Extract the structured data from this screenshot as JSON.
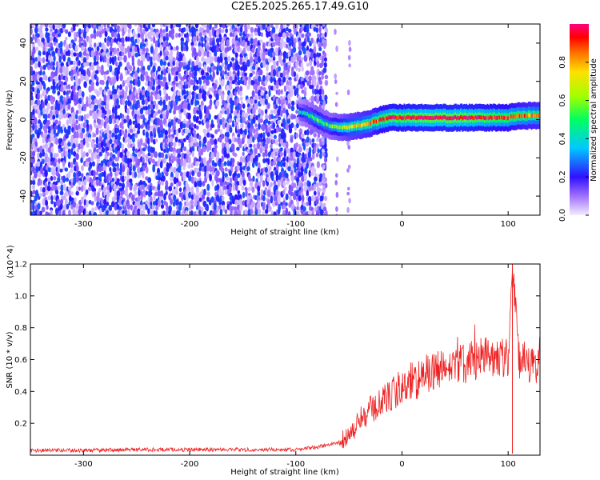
{
  "title": "C2E5.2025.265.17.49.G10",
  "chart_data": [
    {
      "type": "heatmap",
      "xlabel": "Height of straight line (km)",
      "ylabel": "Frequency (Hz)",
      "xlim": [
        -350,
        130
      ],
      "ylim": [
        -50,
        50
      ],
      "x_ticks": [
        -300,
        -200,
        -100,
        0,
        100
      ],
      "x_tick_labels": [
        "-300",
        "-200",
        "-100",
        "0",
        "100"
      ],
      "y_ticks": [
        -40,
        -20,
        0,
        20,
        40
      ],
      "y_tick_labels": [
        "-40",
        "-20",
        "0",
        "20",
        "40"
      ],
      "colorbar": {
        "label": "Normalized spectral amplitude",
        "range": [
          0,
          1
        ],
        "ticks": [
          0,
          0.2,
          0.4,
          0.6,
          0.8
        ],
        "tick_labels": [
          "0.0",
          "0.2",
          "0.4",
          "0.6",
          "0.8"
        ]
      },
      "signal_track": {
        "x": [
          -97,
          -90,
          -80,
          -70,
          -60,
          -50,
          -40,
          -30,
          -20,
          -10,
          0,
          20,
          40,
          60,
          80,
          100,
          110,
          130
        ],
        "freq": [
          4,
          3,
          0,
          -3,
          -4,
          -4,
          -3,
          -2,
          0,
          1,
          1,
          1,
          1,
          1,
          1,
          1,
          2,
          2
        ],
        "peak_amplitude": [
          0.35,
          0.45,
          0.55,
          0.5,
          0.6,
          0.7,
          0.75,
          0.8,
          0.9,
          0.95,
          0.95,
          1.0,
          1.0,
          1.0,
          0.95,
          0.9,
          0.85,
          0.8
        ]
      },
      "noise_region_x": [
        -350,
        -80
      ]
    },
    {
      "type": "line",
      "xlabel": "Height of straight line (km)",
      "ylabel": "SNR (10 * v/v)",
      "y_multiplier": "(x10^4)",
      "xlim": [
        -350,
        130
      ],
      "ylim": [
        0,
        1.2
      ],
      "x_ticks": [
        -300,
        -200,
        -100,
        0,
        100
      ],
      "x_tick_labels": [
        "-300",
        "-200",
        "-100",
        "0",
        "100"
      ],
      "y_ticks": [
        0.2,
        0.4,
        0.6,
        0.8,
        1.0,
        1.2
      ],
      "y_tick_labels": [
        "0.2",
        "0.4",
        "0.6",
        "0.8",
        "1.0",
        "1.2"
      ],
      "series": [
        {
          "color": "#ee2222",
          "x": [
            -350,
            -300,
            -250,
            -200,
            -150,
            -100,
            -80,
            -60,
            -50,
            -40,
            -30,
            -20,
            -10,
            0,
            10,
            20,
            30,
            40,
            50,
            60,
            70,
            80,
            90,
            100,
            104,
            110,
            120,
            130
          ],
          "values": [
            0.03,
            0.03,
            0.035,
            0.035,
            0.035,
            0.035,
            0.05,
            0.08,
            0.12,
            0.22,
            0.28,
            0.33,
            0.38,
            0.42,
            0.46,
            0.5,
            0.52,
            0.54,
            0.56,
            0.58,
            0.6,
            0.62,
            0.63,
            0.6,
            1.2,
            0.6,
            0.58,
            0.57
          ]
        }
      ]
    }
  ]
}
